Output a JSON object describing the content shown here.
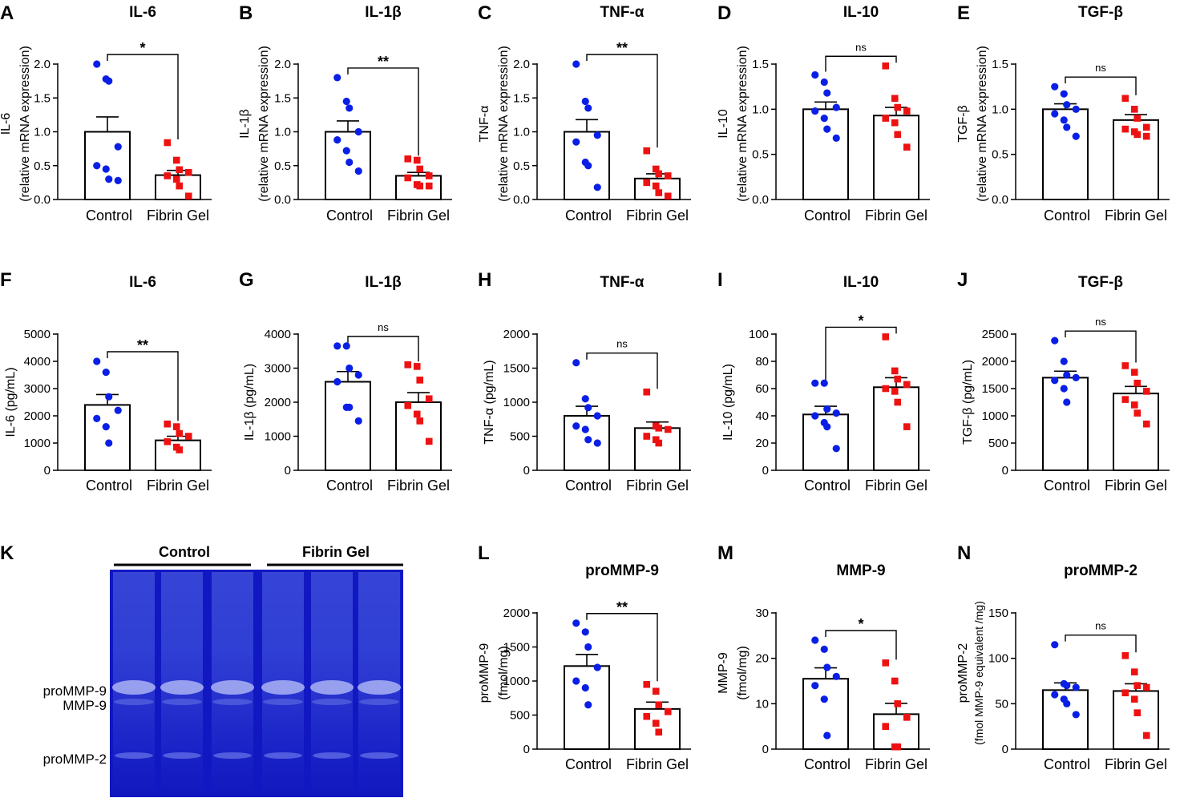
{
  "figure": {
    "panels": [
      {
        "letter": "A",
        "title": "IL-6",
        "ylabel": [
          "IL-6",
          "(relative mRNA expression)"
        ],
        "ylim": [
          0,
          2.0
        ],
        "yticks": [
          "0.0",
          "0.5",
          "1.0",
          "1.5",
          "2.0"
        ],
        "categories": [
          "Control",
          "Fibrin Gel"
        ],
        "means": [
          1.0,
          0.36
        ],
        "sems": [
          0.22,
          0.07
        ],
        "points": [
          [
            2.0,
            1.78,
            1.75,
            0.78,
            0.5,
            0.45,
            0.3,
            0.28
          ],
          [
            0.84,
            0.58,
            0.44,
            0.4,
            0.35,
            0.3,
            0.2,
            0.05
          ]
        ],
        "significance": "*"
      },
      {
        "letter": "B",
        "title": "IL-1β",
        "ylabel": [
          "IL-1β",
          "(relative mRNA expression)"
        ],
        "ylim": [
          0,
          2.0
        ],
        "yticks": [
          "0.0",
          "0.5",
          "1.0",
          "1.5",
          "2.0"
        ],
        "categories": [
          "Control",
          "Fibrin Gel"
        ],
        "means": [
          1.0,
          0.35
        ],
        "sems": [
          0.16,
          0.05
        ],
        "points": [
          [
            1.8,
            1.45,
            1.35,
            1.0,
            0.88,
            0.72,
            0.55,
            0.42
          ],
          [
            0.6,
            0.58,
            0.45,
            0.35,
            0.32,
            0.22,
            0.2,
            0.2
          ]
        ],
        "significance": "**"
      },
      {
        "letter": "C",
        "title": "TNF-α",
        "ylabel": [
          "TNF-α",
          "(relative mRNA expression)"
        ],
        "ylim": [
          0,
          2.0
        ],
        "yticks": [
          "0.0",
          "0.5",
          "1.0",
          "1.5",
          "2.0"
        ],
        "categories": [
          "Control",
          "Fibrin Gel"
        ],
        "means": [
          1.0,
          0.31
        ],
        "sems": [
          0.18,
          0.07
        ],
        "points": [
          [
            2.0,
            1.45,
            1.35,
            0.95,
            0.85,
            0.55,
            0.5,
            0.18
          ],
          [
            0.72,
            0.45,
            0.38,
            0.35,
            0.25,
            0.2,
            0.1,
            0.05
          ]
        ],
        "significance": "**"
      },
      {
        "letter": "D",
        "title": "IL-10",
        "ylabel": [
          "IL-10",
          "(relative mRNA expression)"
        ],
        "ylim": [
          0,
          1.5
        ],
        "yticks": [
          "0.0",
          "0.5",
          "1.0",
          "1.5"
        ],
        "categories": [
          "Control",
          "Fibrin Gel"
        ],
        "means": [
          1.0,
          0.93
        ],
        "sems": [
          0.08,
          0.09
        ],
        "points": [
          [
            1.38,
            1.3,
            1.18,
            1.02,
            0.98,
            0.9,
            0.78,
            0.68
          ],
          [
            1.48,
            1.12,
            1.02,
            0.98,
            0.9,
            0.85,
            0.72,
            0.58
          ]
        ],
        "significance": "ns"
      },
      {
        "letter": "E",
        "title": "TGF-β",
        "ylabel": [
          "TGF-β",
          "(relative mRNA expression)"
        ],
        "ylim": [
          0,
          1.5
        ],
        "yticks": [
          "0.0",
          "0.5",
          "1.0",
          "1.5"
        ],
        "categories": [
          "Control",
          "Fibrin Gel"
        ],
        "means": [
          1.0,
          0.88
        ],
        "sems": [
          0.06,
          0.06
        ],
        "points": [
          [
            1.25,
            1.17,
            1.05,
            1.0,
            0.95,
            0.88,
            0.8,
            0.7
          ],
          [
            1.12,
            1.0,
            0.9,
            0.8,
            0.78,
            0.75,
            0.72,
            0.7
          ]
        ],
        "significance": "ns"
      },
      {
        "letter": "F",
        "title": "IL-6",
        "ylabel": [
          "IL-6 (pg/mL)"
        ],
        "ylim": [
          0,
          5000
        ],
        "yticks": [
          "0",
          "1000",
          "2000",
          "3000",
          "4000",
          "5000"
        ],
        "categories": [
          "Control",
          "Fibrin Gel"
        ],
        "means": [
          2400,
          1100
        ],
        "sems": [
          380,
          150
        ],
        "points": [
          [
            4000,
            3600,
            2700,
            2200,
            1900,
            1600,
            1000
          ],
          [
            1700,
            1600,
            1350,
            1250,
            1050,
            850,
            750
          ]
        ],
        "significance": "**"
      },
      {
        "letter": "G",
        "title": "IL-1β",
        "ylabel": [
          "IL-1β  (pg/mL)"
        ],
        "ylim": [
          0,
          4000
        ],
        "yticks": [
          "0",
          "1000",
          "2000",
          "3000",
          "4000"
        ],
        "categories": [
          "Control",
          "Fibrin Gel"
        ],
        "means": [
          2600,
          2000
        ],
        "sems": [
          300,
          280
        ],
        "points": [
          [
            3650,
            3650,
            3000,
            2800,
            2600,
            1850,
            1850,
            1450
          ],
          [
            3100,
            3050,
            2650,
            2100,
            1900,
            1650,
            1450,
            850
          ]
        ],
        "significance": "ns"
      },
      {
        "letter": "H",
        "title": "TNF-α",
        "ylabel": [
          "TNF-α  (pg/mL)"
        ],
        "ylim": [
          0,
          2000
        ],
        "yticks": [
          "0",
          "500",
          "1000",
          "1500",
          "2000"
        ],
        "categories": [
          "Control",
          "Fibrin Gel"
        ],
        "means": [
          800,
          620
        ],
        "sems": [
          140,
          90
        ],
        "points": [
          [
            1580,
            1050,
            920,
            800,
            650,
            600,
            450,
            400
          ],
          [
            1150,
            650,
            620,
            600,
            500,
            450,
            400
          ]
        ],
        "significance": "ns"
      },
      {
        "letter": "I",
        "title": "IL-10",
        "ylabel": [
          "IL-10 (pg/mL)"
        ],
        "ylim": [
          0,
          100
        ],
        "yticks": [
          "0",
          "20",
          "40",
          "60",
          "80",
          "100"
        ],
        "categories": [
          "Control",
          "Fibrin Gel"
        ],
        "means": [
          41,
          61
        ],
        "sems": [
          6,
          7
        ],
        "points": [
          [
            64,
            64,
            45,
            42,
            40,
            35,
            32,
            16
          ],
          [
            98,
            73,
            67,
            63,
            60,
            58,
            50,
            32
          ]
        ],
        "significance": "*"
      },
      {
        "letter": "J",
        "title": "TGF-β",
        "ylabel": [
          "TGF-β (pg/mL)"
        ],
        "ylim": [
          0,
          2500
        ],
        "yticks": [
          "0",
          "500",
          "1000",
          "1500",
          "2000",
          "2500"
        ],
        "categories": [
          "Control",
          "Fibrin Gel"
        ],
        "means": [
          1700,
          1410
        ],
        "sems": [
          120,
          130
        ],
        "points": [
          [
            2380,
            2000,
            1750,
            1700,
            1650,
            1500,
            1250
          ],
          [
            1920,
            1800,
            1600,
            1450,
            1300,
            1200,
            1050,
            850
          ]
        ],
        "significance": "ns"
      },
      {
        "letter": "L",
        "title": "proMMP-9",
        "ylabel": [
          "proMMP-9",
          "(fmol/mg)"
        ],
        "ylim": [
          0,
          2000
        ],
        "yticks": [
          "0",
          "500",
          "1000",
          "1500",
          "2000"
        ],
        "categories": [
          "Control",
          "Fibrin Gel"
        ],
        "means": [
          1220,
          590
        ],
        "sems": [
          170,
          100
        ],
        "points": [
          [
            1850,
            1720,
            1500,
            1200,
            1000,
            900,
            650
          ],
          [
            950,
            850,
            650,
            550,
            480,
            380,
            250
          ]
        ],
        "significance": "**"
      },
      {
        "letter": "M",
        "title": "MMP-9",
        "ylabel": [
          "MMP-9",
          "(fmol/mg)"
        ],
        "ylim": [
          0,
          30
        ],
        "yticks": [
          "0",
          "10",
          "20",
          "30"
        ],
        "categories": [
          "Control",
          "Fibrin Gel"
        ],
        "means": [
          15.5,
          7.7
        ],
        "sems": [
          2.4,
          2.4
        ],
        "points": [
          [
            24,
            22,
            18,
            16,
            14,
            11,
            3
          ],
          [
            19,
            15,
            10,
            7,
            5,
            0.5,
            0.5
          ]
        ],
        "significance": "*"
      },
      {
        "letter": "N",
        "title": "proMMP-2",
        "ylabel": [
          "proMMP-2",
          "(fmol MMP-9 equivalent /mg)"
        ],
        "ylim": [
          0,
          150
        ],
        "yticks": [
          "0",
          "50",
          "100",
          "150"
        ],
        "categories": [
          "Control",
          "Fibrin Gel"
        ],
        "means": [
          65,
          64
        ],
        "sems": [
          8,
          8
        ],
        "points": [
          [
            115,
            72,
            70,
            68,
            60,
            55,
            50,
            38
          ],
          [
            103,
            85,
            70,
            68,
            62,
            55,
            40,
            15
          ]
        ],
        "significance": "ns"
      }
    ],
    "gel": {
      "letter": "K",
      "group_labels": [
        "Control",
        "Fibrin Gel"
      ],
      "band_labels": [
        "proMMP-9",
        "MMP-9",
        "proMMP-2"
      ]
    }
  },
  "chart_data": {
    "type": "bar",
    "series_colors": [
      "#0a1fe6",
      "#ee1111"
    ],
    "panels": [
      {
        "letter": "A",
        "title": "IL-6",
        "categories": [
          "Control",
          "Fibrin Gel"
        ],
        "means": [
          1.0,
          0.36
        ],
        "ylim": [
          0,
          2.0
        ]
      },
      {
        "letter": "B",
        "title": "IL-1β",
        "categories": [
          "Control",
          "Fibrin Gel"
        ],
        "means": [
          1.0,
          0.35
        ],
        "ylim": [
          0,
          2.0
        ]
      },
      {
        "letter": "C",
        "title": "TNF-α",
        "categories": [
          "Control",
          "Fibrin Gel"
        ],
        "means": [
          1.0,
          0.31
        ],
        "ylim": [
          0,
          2.0
        ]
      },
      {
        "letter": "D",
        "title": "IL-10",
        "categories": [
          "Control",
          "Fibrin Gel"
        ],
        "means": [
          1.0,
          0.93
        ],
        "ylim": [
          0,
          1.5
        ]
      },
      {
        "letter": "E",
        "title": "TGF-β",
        "categories": [
          "Control",
          "Fibrin Gel"
        ],
        "means": [
          1.0,
          0.88
        ],
        "ylim": [
          0,
          1.5
        ]
      },
      {
        "letter": "F",
        "title": "IL-6",
        "categories": [
          "Control",
          "Fibrin Gel"
        ],
        "means": [
          2400,
          1100
        ],
        "ylim": [
          0,
          5000
        ]
      },
      {
        "letter": "G",
        "title": "IL-1β",
        "categories": [
          "Control",
          "Fibrin Gel"
        ],
        "means": [
          2600,
          2000
        ],
        "ylim": [
          0,
          4000
        ]
      },
      {
        "letter": "H",
        "title": "TNF-α",
        "categories": [
          "Control",
          "Fibrin Gel"
        ],
        "means": [
          800,
          620
        ],
        "ylim": [
          0,
          2000
        ]
      },
      {
        "letter": "I",
        "title": "IL-10",
        "categories": [
          "Control",
          "Fibrin Gel"
        ],
        "means": [
          41,
          61
        ],
        "ylim": [
          0,
          100
        ]
      },
      {
        "letter": "J",
        "title": "TGF-β",
        "categories": [
          "Control",
          "Fibrin Gel"
        ],
        "means": [
          1700,
          1410
        ],
        "ylim": [
          0,
          2500
        ]
      },
      {
        "letter": "L",
        "title": "proMMP-9",
        "categories": [
          "Control",
          "Fibrin Gel"
        ],
        "means": [
          1220,
          590
        ],
        "ylim": [
          0,
          2000
        ]
      },
      {
        "letter": "M",
        "title": "MMP-9",
        "categories": [
          "Control",
          "Fibrin Gel"
        ],
        "means": [
          15.5,
          7.7
        ],
        "ylim": [
          0,
          30
        ]
      },
      {
        "letter": "N",
        "title": "proMMP-2",
        "categories": [
          "Control",
          "Fibrin Gel"
        ],
        "means": [
          65,
          64
        ],
        "ylim": [
          0,
          150
        ]
      }
    ]
  }
}
